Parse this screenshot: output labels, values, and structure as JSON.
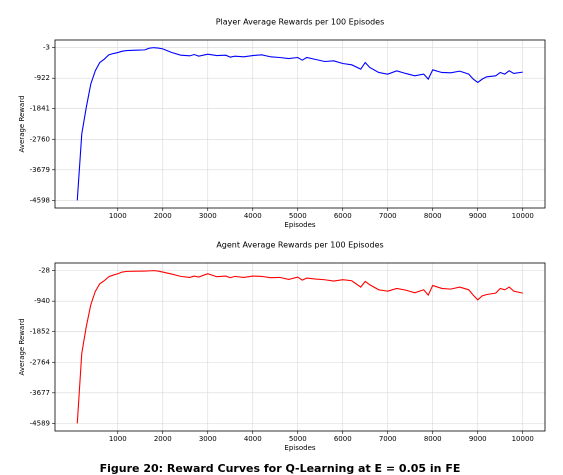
{
  "chart_data": [
    {
      "type": "line",
      "title": "Player Average Rewards per 100 Episodes",
      "x_label": "Episodes",
      "y_label": "Average Reward",
      "x": [
        100,
        200,
        300,
        400,
        500,
        600,
        700,
        800,
        900,
        1000,
        1100,
        1200,
        1400,
        1600,
        1700,
        1800,
        1900,
        2000,
        2200,
        2400,
        2600,
        2700,
        2800,
        3000,
        3200,
        3400,
        3500,
        3600,
        3800,
        4000,
        4200,
        4400,
        4600,
        4800,
        5000,
        5100,
        5200,
        5400,
        5600,
        5800,
        6000,
        6200,
        6400,
        6500,
        6600,
        6800,
        7000,
        7200,
        7400,
        7600,
        7800,
        7900,
        8000,
        8200,
        8400,
        8600,
        8800,
        8900,
        9000,
        9100,
        9200,
        9400,
        9500,
        9600,
        9700,
        9800,
        10000
      ],
      "series": [
        {
          "name": "Player",
          "color": "#0000ff",
          "values": [
            -4598,
            -2600,
            -1800,
            -1100,
            -700,
            -450,
            -350,
            -220,
            -180,
            -150,
            -110,
            -90,
            -80,
            -70,
            -20,
            -3,
            -15,
            -40,
            -150,
            -230,
            -250,
            -210,
            -260,
            -200,
            -240,
            -230,
            -290,
            -260,
            -280,
            -240,
            -220,
            -280,
            -300,
            -330,
            -300,
            -380,
            -300,
            -360,
            -420,
            -400,
            -480,
            -520,
            -650,
            -450,
            -600,
            -750,
            -800,
            -700,
            -780,
            -850,
            -800,
            -950,
            -670,
            -750,
            -760,
            -710,
            -800,
            -950,
            -1050,
            -950,
            -880,
            -850,
            -750,
            -800,
            -700,
            -780,
            -740
          ]
        }
      ],
      "xlim": [
        -395,
        10495
      ],
      "xticks": [
        1000,
        2000,
        3000,
        4000,
        5000,
        6000,
        7000,
        8000,
        9000,
        10000
      ],
      "ylim": [
        -4828,
        227
      ],
      "yticks": [
        -4598,
        -3679,
        -2760,
        -1841,
        -922,
        -3
      ],
      "grid": true
    },
    {
      "type": "line",
      "title": "Agent Average Rewards per 100 Episodes",
      "x_label": "Episodes",
      "y_label": "Average Reward",
      "x": [
        100,
        200,
        300,
        400,
        500,
        600,
        700,
        800,
        900,
        1000,
        1100,
        1200,
        1400,
        1600,
        1700,
        1800,
        1900,
        2000,
        2200,
        2400,
        2600,
        2700,
        2800,
        3000,
        3200,
        3400,
        3500,
        3600,
        3800,
        4000,
        4200,
        4400,
        4600,
        4800,
        5000,
        5100,
        5200,
        5400,
        5600,
        5800,
        6000,
        6200,
        6400,
        6500,
        6600,
        6800,
        7000,
        7200,
        7400,
        7600,
        7800,
        7900,
        8000,
        8200,
        8400,
        8600,
        8800,
        8900,
        9000,
        9100,
        9200,
        9400,
        9500,
        9600,
        9700,
        9800,
        10000
      ],
      "series": [
        {
          "name": "Agent",
          "color": "#ff0000",
          "values": [
            -4589,
            -2500,
            -1700,
            -1050,
            -650,
            -420,
            -330,
            -210,
            -160,
            -120,
            -70,
            -50,
            -45,
            -40,
            -35,
            -28,
            -40,
            -70,
            -130,
            -200,
            -230,
            -190,
            -220,
            -120,
            -210,
            -190,
            -240,
            -200,
            -230,
            -190,
            -200,
            -240,
            -230,
            -290,
            -220,
            -310,
            -250,
            -280,
            -300,
            -340,
            -300,
            -330,
            -520,
            -350,
            -450,
            -600,
            -640,
            -560,
            -610,
            -690,
            -600,
            -760,
            -470,
            -560,
            -580,
            -520,
            -600,
            -760,
            -900,
            -780,
            -740,
            -700,
            -560,
            -600,
            -520,
            -640,
            -700
          ]
        }
      ],
      "xlim": [
        -395,
        10495
      ],
      "xticks": [
        1000,
        2000,
        3000,
        4000,
        5000,
        6000,
        7000,
        8000,
        9000,
        10000
      ],
      "ylim": [
        -4817,
        200
      ],
      "yticks": [
        -4589,
        -3677,
        -2764,
        -1852,
        -940,
        -28
      ],
      "grid": true
    }
  ],
  "caption": "Figure 20: Reward Curves for Q-Learning at E = 0.05 in FE"
}
